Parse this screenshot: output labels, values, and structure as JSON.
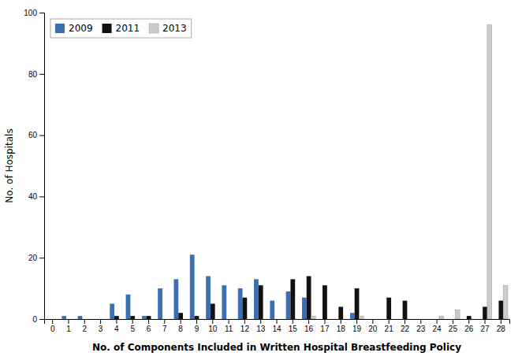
{
  "chart_data": {
    "type": "bar",
    "xlabel": "No. of Components Included in Written Hospital Breastfeeding Policy",
    "ylabel": "No. of Hospitals",
    "categories": [
      0,
      1,
      2,
      3,
      4,
      5,
      6,
      7,
      8,
      9,
      10,
      11,
      12,
      13,
      14,
      15,
      16,
      17,
      18,
      19,
      20,
      21,
      22,
      23,
      24,
      25,
      26,
      27,
      28
    ],
    "series": [
      {
        "name": "2009",
        "color": "#3c6eb4",
        "values": [
          0,
          1,
          1,
          0,
          5,
          8,
          1,
          10,
          13,
          21,
          14,
          11,
          10,
          13,
          6,
          9,
          7,
          0,
          0,
          2,
          0,
          0,
          0,
          0,
          0,
          0,
          0,
          0,
          0
        ]
      },
      {
        "name": "2011",
        "color": "#111111",
        "values": [
          0,
          0,
          0,
          0,
          1,
          1,
          1,
          0,
          2,
          1,
          5,
          0,
          7,
          11,
          0,
          13,
          14,
          11,
          4,
          10,
          0,
          7,
          6,
          0,
          0,
          0,
          1,
          4,
          6
        ]
      },
      {
        "name": "2013",
        "color": "#cccccc",
        "values": [
          0,
          0,
          0,
          0,
          0,
          0,
          0,
          0,
          0,
          0,
          0,
          0,
          0,
          0,
          0,
          0,
          1,
          0,
          0,
          1,
          0,
          0,
          0,
          0,
          1,
          3,
          0,
          96,
          11
        ]
      }
    ],
    "ylim": [
      0,
      100
    ],
    "yticks": [
      0,
      20,
      40,
      60,
      80,
      100
    ],
    "grid": false,
    "legend": "upper left"
  }
}
